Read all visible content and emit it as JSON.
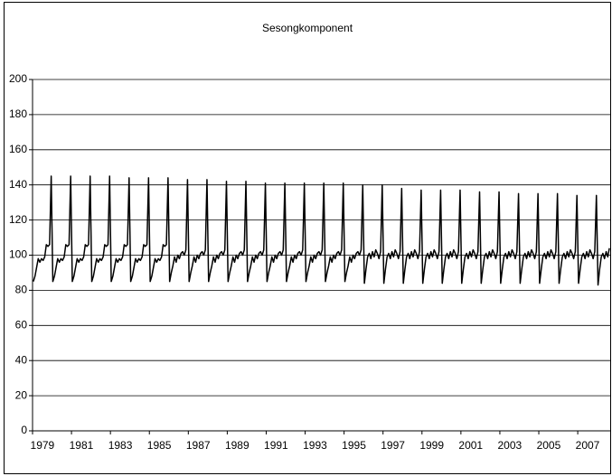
{
  "chart_data": {
    "type": "line",
    "title": "Sesongkomponent",
    "categories": [
      "1979",
      null,
      null,
      null,
      null,
      null,
      null,
      null,
      null,
      null,
      null,
      null,
      null,
      null,
      null,
      null,
      null,
      null,
      null,
      null,
      null,
      null,
      null,
      null,
      "1981",
      null,
      null,
      null,
      null,
      null,
      null,
      null,
      null,
      null,
      null,
      null,
      null,
      null,
      null,
      null,
      null,
      null,
      null,
      null,
      null,
      null,
      null,
      null,
      "1983",
      null,
      null,
      null,
      null,
      null,
      null,
      null,
      null,
      null,
      null,
      null,
      null,
      null,
      null,
      null,
      null,
      null,
      null,
      null,
      null,
      null,
      null,
      null,
      "1985",
      null,
      null,
      null,
      null,
      null,
      null,
      null,
      null,
      null,
      null,
      null,
      null,
      null,
      null,
      null,
      null,
      null,
      null,
      null,
      null,
      null,
      null,
      null,
      "1987",
      null,
      null,
      null,
      null,
      null,
      null,
      null,
      null,
      null,
      null,
      null,
      null,
      null,
      null,
      null,
      null,
      null,
      null,
      null,
      null,
      null,
      null,
      null,
      "1989",
      null,
      null,
      null,
      null,
      null,
      null,
      null,
      null,
      null,
      null,
      null,
      null,
      null,
      null,
      null,
      null,
      null,
      null,
      null,
      null,
      null,
      null,
      null,
      "1991",
      null,
      null,
      null,
      null,
      null,
      null,
      null,
      null,
      null,
      null,
      null,
      null,
      null,
      null,
      null,
      null,
      null,
      null,
      null,
      null,
      null,
      null,
      null,
      "1993",
      null,
      null,
      null,
      null,
      null,
      null,
      null,
      null,
      null,
      null,
      null,
      null,
      null,
      null,
      null,
      null,
      null,
      null,
      null,
      null,
      null,
      null,
      null,
      "1995",
      null,
      null,
      null,
      null,
      null,
      null,
      null,
      null,
      null,
      null,
      null,
      null,
      null,
      null,
      null,
      null,
      null,
      null,
      null,
      null,
      null,
      null,
      null,
      "1997",
      null,
      null,
      null,
      null,
      null,
      null,
      null,
      null,
      null,
      null,
      null,
      null,
      null,
      null,
      null,
      null,
      null,
      null,
      null,
      null,
      null,
      null,
      null,
      "1999",
      null,
      null,
      null,
      null,
      null,
      null,
      null,
      null,
      null,
      null,
      null,
      null,
      null,
      null,
      null,
      null,
      null,
      null,
      null,
      null,
      null,
      null,
      null,
      "2001",
      null,
      null,
      null,
      null,
      null,
      null,
      null,
      null,
      null,
      null,
      null,
      null,
      null,
      null,
      null,
      null,
      null,
      null,
      null,
      null,
      null,
      null,
      null,
      "2003",
      null,
      null,
      null,
      null,
      null,
      null,
      null,
      null,
      null,
      null,
      null,
      null,
      null,
      null,
      null,
      null,
      null,
      null,
      null,
      null,
      null,
      null,
      null,
      "2005",
      null,
      null,
      null,
      null,
      null,
      null,
      null,
      null,
      null,
      null,
      null,
      null,
      null,
      null,
      null,
      null,
      null,
      null,
      null,
      null,
      null,
      null,
      null,
      "2007",
      null,
      null,
      null,
      null,
      null,
      null,
      null,
      null,
      null,
      null,
      null,
      null,
      null,
      null,
      null,
      null,
      null,
      null,
      null
    ],
    "values": [
      85,
      88,
      93,
      98,
      96,
      98,
      97,
      99,
      106,
      105,
      106,
      145,
      85,
      88,
      93,
      98,
      96,
      98,
      97,
      99,
      106,
      105,
      106,
      145,
      85,
      88,
      93,
      98,
      96,
      98,
      97,
      99,
      106,
      105,
      106,
      145,
      85,
      88,
      93,
      98,
      96,
      98,
      97,
      99,
      106,
      105,
      106,
      145,
      85,
      88,
      93,
      98,
      96,
      98,
      97,
      99,
      106,
      105,
      106,
      144,
      85,
      88,
      93,
      98,
      96,
      98,
      97,
      99,
      106,
      105,
      106,
      144,
      85,
      88,
      93,
      98,
      96,
      98,
      97,
      99,
      106,
      105,
      106,
      144,
      85,
      90,
      94,
      99,
      96,
      100,
      98,
      101,
      102,
      100,
      103,
      143,
      85,
      90,
      94,
      99,
      96,
      100,
      98,
      101,
      102,
      100,
      103,
      143,
      85,
      90,
      94,
      99,
      96,
      100,
      98,
      101,
      102,
      100,
      103,
      142,
      85,
      90,
      94,
      99,
      96,
      100,
      98,
      101,
      102,
      100,
      103,
      142,
      85,
      90,
      94,
      99,
      96,
      100,
      98,
      101,
      102,
      100,
      103,
      141,
      85,
      90,
      94,
      99,
      96,
      100,
      98,
      101,
      102,
      100,
      103,
      141,
      85,
      90,
      94,
      99,
      96,
      100,
      98,
      101,
      102,
      100,
      103,
      141,
      85,
      90,
      94,
      99,
      96,
      100,
      98,
      101,
      102,
      100,
      103,
      141,
      85,
      90,
      94,
      99,
      96,
      100,
      98,
      101,
      102,
      100,
      103,
      141,
      85,
      90,
      94,
      99,
      96,
      100,
      98,
      101,
      102,
      100,
      103,
      140,
      84,
      92,
      99,
      101,
      98,
      102,
      99,
      103,
      101,
      98,
      102,
      140,
      84,
      92,
      99,
      101,
      98,
      102,
      99,
      103,
      101,
      98,
      102,
      138,
      84,
      92,
      99,
      101,
      98,
      102,
      99,
      103,
      101,
      98,
      102,
      137,
      84,
      92,
      99,
      101,
      98,
      102,
      99,
      103,
      101,
      98,
      102,
      137,
      84,
      92,
      99,
      101,
      98,
      102,
      99,
      103,
      101,
      98,
      102,
      137,
      84,
      92,
      99,
      101,
      98,
      102,
      99,
      103,
      101,
      98,
      102,
      136,
      84,
      92,
      99,
      101,
      98,
      102,
      99,
      103,
      101,
      98,
      102,
      136,
      84,
      92,
      99,
      101,
      98,
      102,
      99,
      103,
      101,
      98,
      102,
      135,
      84,
      92,
      99,
      101,
      98,
      102,
      99,
      103,
      101,
      98,
      102,
      135,
      84,
      92,
      99,
      101,
      98,
      102,
      99,
      103,
      101,
      98,
      102,
      135,
      84,
      92,
      99,
      101,
      98,
      102,
      99,
      103,
      101,
      98,
      102,
      134,
      84,
      92,
      99,
      101,
      98,
      102,
      99,
      103,
      101,
      98,
      102,
      134,
      83,
      92,
      99,
      101,
      98,
      102,
      99,
      104
    ],
    "color": "#000000",
    "ylim": [
      0,
      200
    ],
    "yticks": [
      0,
      20,
      40,
      60,
      80,
      100,
      120,
      140,
      160,
      180,
      200
    ],
    "grid": true
  }
}
